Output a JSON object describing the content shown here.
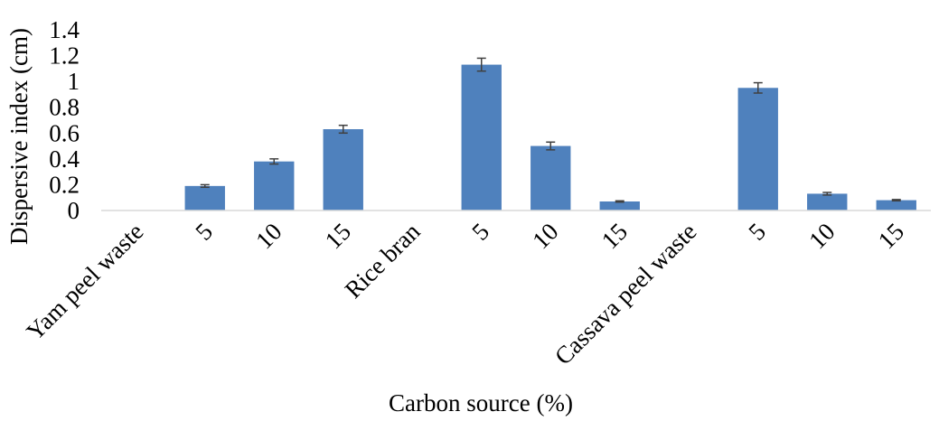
{
  "chart_data": {
    "type": "bar",
    "title": "",
    "xlabel": "Carbon source (%)",
    "ylabel": "Dispersive index (cm)",
    "ylim": [
      0,
      1.4
    ],
    "yticks": [
      "0",
      "0.2",
      "0.4",
      "0.6",
      "0.8",
      "1",
      "1.2",
      "1.4"
    ],
    "grid": false,
    "legend": "none",
    "categories": [
      "Yam peel waste",
      "5",
      "10",
      "15",
      "Rice bran",
      "5",
      "10",
      "15",
      "Cassava peel waste",
      "5",
      "10",
      "15"
    ],
    "values": [
      0,
      0.19,
      0.38,
      0.63,
      0,
      1.13,
      0.5,
      0.07,
      0,
      0.95,
      0.13,
      0.08
    ],
    "errors": [
      0,
      0.01,
      0.02,
      0.03,
      0,
      0.05,
      0.03,
      0.005,
      0,
      0.04,
      0.01,
      0.005
    ],
    "bar_color": "#4f81bd",
    "error_color": "#404040",
    "axis_color": "#d9d9d9"
  }
}
